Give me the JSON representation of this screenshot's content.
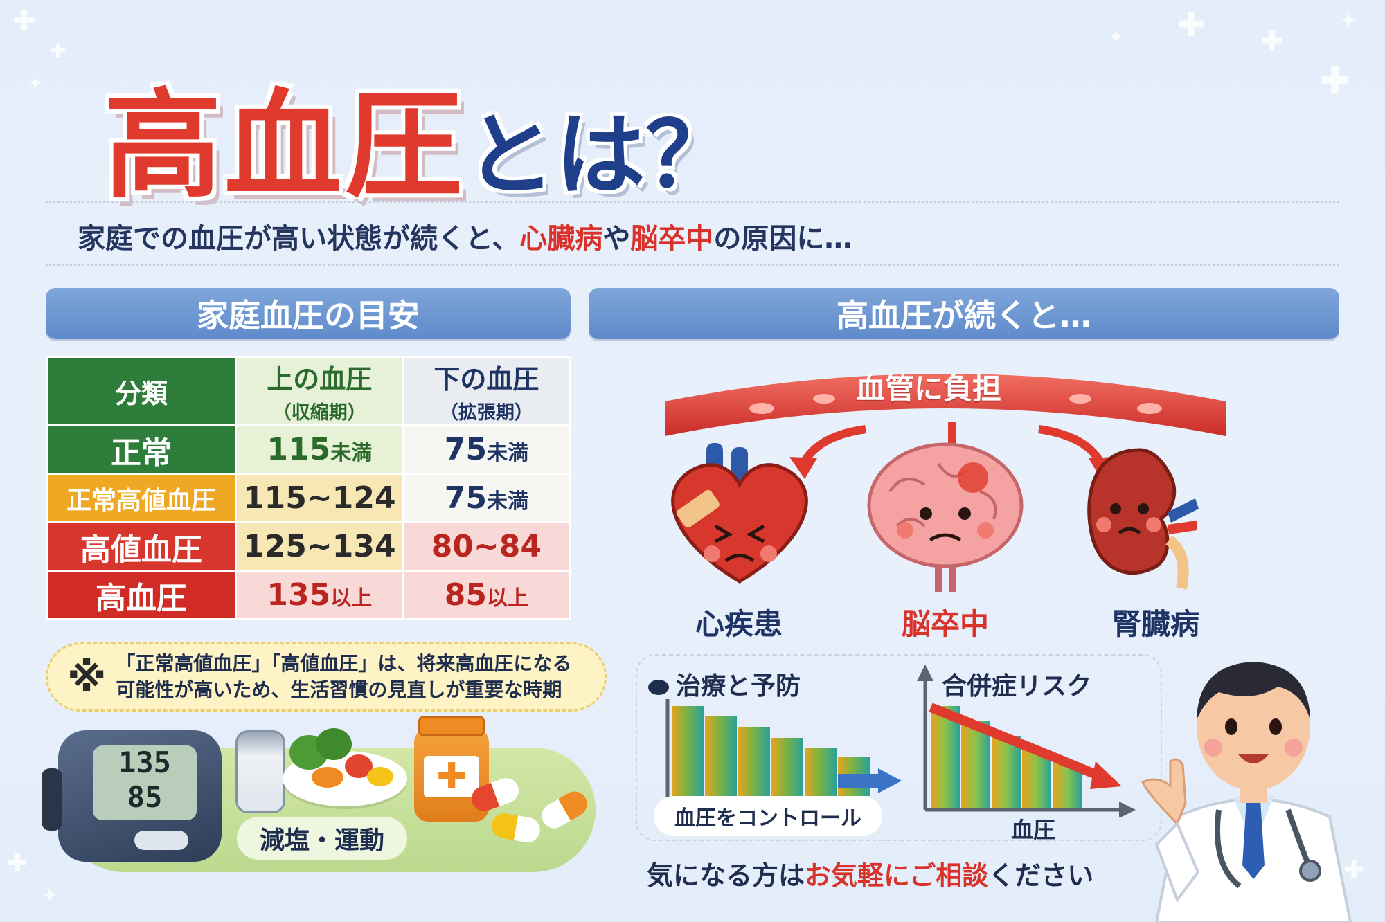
{
  "title": {
    "red": "高血圧",
    "blue": "とは？"
  },
  "subtitle": {
    "pre": "家庭での血圧が高い状態が続くと、",
    "red1": "心臓病",
    "mid": "や",
    "red2": "脳卒中",
    "post": "の原因に…"
  },
  "left_section": {
    "header": "家庭血圧の目安",
    "table": {
      "headers": {
        "category": "分類",
        "systolic": "上の血圧",
        "systolic_sub": "（収縮期）",
        "diastolic": "下の血圧",
        "diastolic_sub": "（拡張期）"
      },
      "rows": [
        {
          "category": "正常",
          "sys_value": "115",
          "sys_unit": "未満",
          "dia_value": "75",
          "dia_unit": "未満"
        },
        {
          "category": "正常高値血圧",
          "sys_value": "115~124",
          "sys_unit": "",
          "dia_value": "75",
          "dia_unit": "未満"
        },
        {
          "category": "高値血圧",
          "sys_value": "125~134",
          "sys_unit": "",
          "dia_value": "80~84",
          "dia_unit": ""
        },
        {
          "category": "高血圧",
          "sys_value": "135",
          "sys_unit": "以上",
          "dia_value": "85",
          "dia_unit": "以上"
        }
      ]
    },
    "note": {
      "mark": "※",
      "line1": "「正常高値血圧」「高値血圧」は、将来高血圧になる",
      "line2": "可能性が高いため、生活習慣の見直しが重要な時期"
    },
    "monitor": {
      "sys": "135",
      "dia": "85"
    },
    "lifestyle_label": "減塩・運動"
  },
  "right_section": {
    "header": "高血圧が続くと…",
    "vessel_label": "血管に負担",
    "organs": [
      {
        "name": "心疾患",
        "color": "#1f3365"
      },
      {
        "name": "脳卒中",
        "color": "#d8322a"
      },
      {
        "name": "腎臓病",
        "color": "#1f3365"
      }
    ],
    "chart_left": {
      "title": "治療と予防",
      "footer": "血圧をコントロール"
    },
    "chart_right": {
      "title": "合併症リスク",
      "xlabel": "血圧"
    },
    "cta": {
      "pre": "気になる方は",
      "red": "お気軽にご相談",
      "post": "ください"
    }
  },
  "colors": {
    "title_red": "#e03a2e",
    "title_blue": "#1f3f8a",
    "header_blue": "#6b93d1",
    "normal_green": "#2f7d3a",
    "high_normal_orange": "#eea824",
    "red": "#d8352d"
  },
  "icons": [
    "sparkle-icon",
    "heart-icon",
    "brain-icon",
    "kidney-icon",
    "blood-pressure-monitor-icon",
    "salt-shaker-icon",
    "pill-icon",
    "doctor-icon"
  ]
}
